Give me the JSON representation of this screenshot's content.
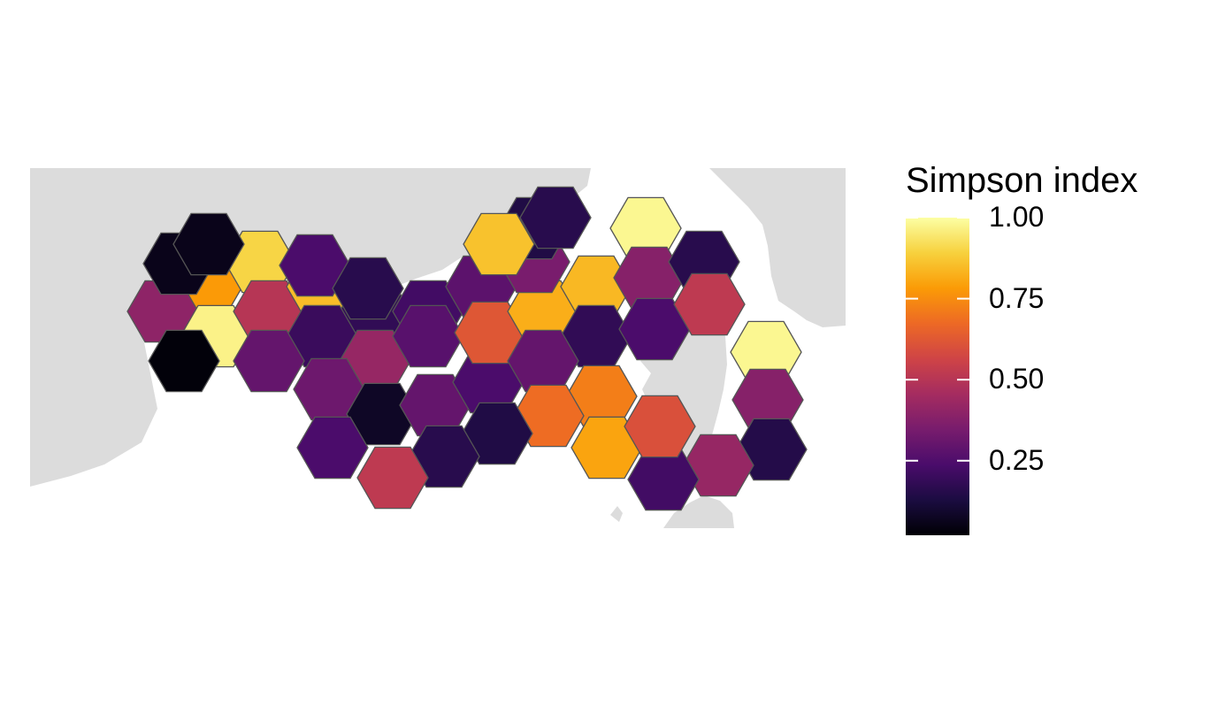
{
  "legend": {
    "title": "Simpson index",
    "tick_labels": [
      "1.00",
      "0.75",
      "0.50",
      "0.25"
    ],
    "tick_values": [
      1.0,
      0.75,
      0.5,
      0.25
    ],
    "range": [
      0.02,
      1.0
    ],
    "palette": [
      "#000004",
      "#1b0c41",
      "#4a0c6b",
      "#781c6d",
      "#a52c60",
      "#cf4446",
      "#ed6925",
      "#fb9b06",
      "#f7d13d",
      "#fcffa4"
    ]
  },
  "colors": {
    "land": "#dcdcdc",
    "sea": "#ffffff",
    "hex_border": "#555555"
  }
}
